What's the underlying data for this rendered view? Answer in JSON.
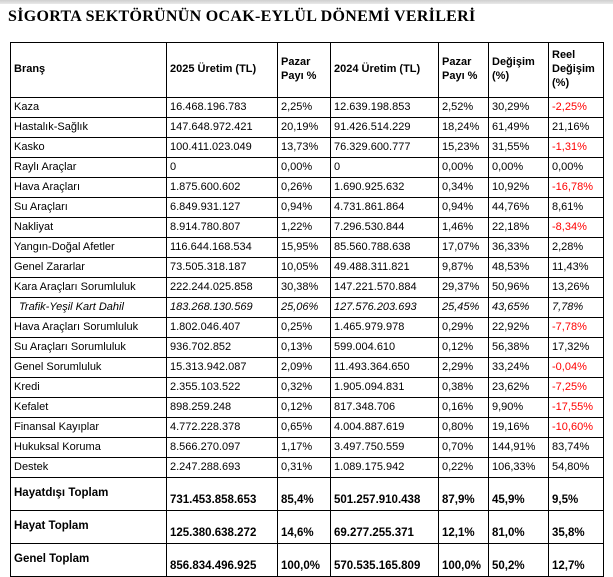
{
  "page": {
    "title": "SİGORTA SEKTÖRÜNÜN OCAK-EYLÜL DÖNEMİ VERİLERİ"
  },
  "colors": {
    "text": "#000000",
    "border": "#000000",
    "negative_value": "#ff0000",
    "background": "#ffffff",
    "top_strip": "#d6d6d6"
  },
  "chart_data": {
    "type": "table",
    "title": "SİGORTA SEKTÖRÜNÜN OCAK-EYLÜL DÖNEMİ VERİLERİ",
    "columns": [
      "Branş",
      "2025 Üretim (TL)",
      "Pazar Payı %",
      "2024 Üretim (TL)",
      "Pazar Payı %",
      "Değişim (%)",
      "Reel Değişim (%)"
    ],
    "rows": [
      {
        "style": "normal",
        "cells": [
          "Kaza",
          "16.468.196.783",
          "2,25%",
          "12.639.198.853",
          "2,52%",
          "30,29%",
          "-2,25%"
        ]
      },
      {
        "style": "normal",
        "cells": [
          "Hastalık-Sağlık",
          "147.648.972.421",
          "20,19%",
          "91.426.514.229",
          "18,24%",
          "61,49%",
          "21,16%"
        ]
      },
      {
        "style": "normal",
        "cells": [
          "Kasko",
          "100.411.023.049",
          "13,73%",
          "76.329.600.777",
          "15,23%",
          "31,55%",
          "-1,31%"
        ]
      },
      {
        "style": "normal",
        "cells": [
          "Raylı Araçlar",
          "0",
          "0,00%",
          "0",
          "0,00%",
          "0,00%",
          "0,00%"
        ]
      },
      {
        "style": "normal",
        "cells": [
          "Hava Araçları",
          "1.875.600.602",
          "0,26%",
          "1.690.925.632",
          "0,34%",
          "10,92%",
          "-16,78%"
        ]
      },
      {
        "style": "normal",
        "cells": [
          "Su Araçları",
          "6.849.931.127",
          "0,94%",
          "4.731.861.864",
          "0,94%",
          "44,76%",
          "8,61%"
        ]
      },
      {
        "style": "normal",
        "cells": [
          "Nakliyat",
          "8.914.780.807",
          "1,22%",
          "7.296.530.844",
          "1,46%",
          "22,18%",
          "-8,34%"
        ]
      },
      {
        "style": "normal",
        "cells": [
          "Yangın-Doğal Afetler",
          "116.644.168.534",
          "15,95%",
          "85.560.788.638",
          "17,07%",
          "36,33%",
          "2,28%"
        ]
      },
      {
        "style": "normal",
        "cells": [
          "Genel Zararlar",
          "73.505.318.187",
          "10,05%",
          "49.488.311.821",
          "9,87%",
          "48,53%",
          "11,43%"
        ]
      },
      {
        "style": "normal",
        "cells": [
          "Kara Araçları Sorumluluk",
          "222.244.025.858",
          "30,38%",
          "147.221.570.884",
          "29,37%",
          "50,96%",
          "13,26%"
        ]
      },
      {
        "style": "italic",
        "cells": [
          "Trafik-Yeşil Kart Dahil",
          "183.268.130.569",
          "25,06%",
          "127.576.203.693",
          "25,45%",
          "43,65%",
          "7,78%"
        ]
      },
      {
        "style": "normal",
        "cells": [
          "Hava Araçları Sorumluluk",
          "1.802.046.407",
          "0,25%",
          "1.465.979.978",
          "0,29%",
          "22,92%",
          "-7,78%"
        ]
      },
      {
        "style": "normal",
        "cells": [
          "Su Araçları Sorumluluk",
          "936.702.852",
          "0,13%",
          "599.004.610",
          "0,12%",
          "56,38%",
          "17,32%"
        ]
      },
      {
        "style": "normal",
        "cells": [
          "Genel Sorumluluk",
          "15.313.942.087",
          "2,09%",
          "11.493.364.650",
          "2,29%",
          "33,24%",
          "-0,04%"
        ]
      },
      {
        "style": "normal",
        "cells": [
          "Kredi",
          "2.355.103.522",
          "0,32%",
          "1.905.094.831",
          "0,38%",
          "23,62%",
          "-7,25%"
        ]
      },
      {
        "style": "normal",
        "cells": [
          "Kefalet",
          "898.259.248",
          "0,12%",
          "817.348.706",
          "0,16%",
          "9,90%",
          "-17,55%"
        ]
      },
      {
        "style": "normal",
        "cells": [
          "Finansal Kayıplar",
          "4.772.228.378",
          "0,65%",
          "4.004.887.619",
          "0,80%",
          "19,16%",
          "-10,60%"
        ]
      },
      {
        "style": "normal",
        "cells": [
          "Hukuksal Koruma",
          "8.566.270.097",
          "1,17%",
          "3.497.750.559",
          "0,70%",
          "144,91%",
          "83,74%"
        ]
      },
      {
        "style": "normal",
        "cells": [
          "Destek",
          "2.247.288.693",
          "0,31%",
          "1.089.175.942",
          "0,22%",
          "106,33%",
          "54,80%"
        ]
      },
      {
        "style": "total",
        "cells": [
          "Hayatdışı Toplam",
          "731.453.858.653",
          "85,4%",
          "501.257.910.438",
          "87,9%",
          "45,9%",
          "9,5%"
        ]
      },
      {
        "style": "total",
        "cells": [
          "Hayat Toplam",
          "125.380.638.272",
          "14,6%",
          "69.277.255.371",
          "12,1%",
          "81,0%",
          "35,8%"
        ]
      },
      {
        "style": "total",
        "cells": [
          "Genel Toplam",
          "856.834.496.925",
          "100,0%",
          "570.535.165.809",
          "100,0%",
          "50,2%",
          "12,7%"
        ]
      }
    ]
  }
}
